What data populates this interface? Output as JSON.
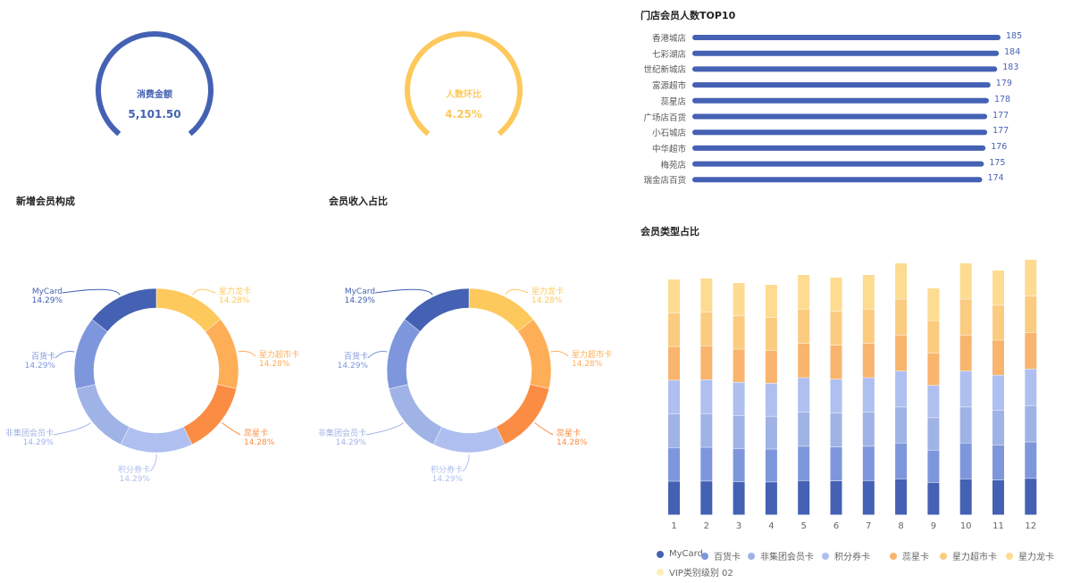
{
  "gauges": [
    {
      "label": "消费金额",
      "value": "5,101.50",
      "color": "#4461b3"
    },
    {
      "label": "人数环比",
      "value": "4.25%",
      "color": "#fdc95c"
    }
  ],
  "chart_data": [
    {
      "type": "pie",
      "title": "新增会员构成",
      "donut": true,
      "slices": [
        {
          "name": "星力龙卡",
          "pct": "14.28%",
          "value": 14.28,
          "color": "#fdc95c"
        },
        {
          "name": "星力超市卡",
          "pct": "14.28%",
          "value": 14.28,
          "color": "#feae57"
        },
        {
          "name": "蕊星卡",
          "pct": "14.28%",
          "value": 14.28,
          "color": "#fb8c44"
        },
        {
          "name": "积分券卡",
          "pct": "14.29%",
          "value": 14.29,
          "color": "#afbff0"
        },
        {
          "name": "非集团会员卡",
          "pct": "14.29%",
          "value": 14.29,
          "color": "#a0b3e6"
        },
        {
          "name": "百货卡",
          "pct": "14.29%",
          "value": 14.29,
          "color": "#7e97dc"
        },
        {
          "name": "MyCard",
          "pct": "14.29%",
          "value": 14.29,
          "color": "#4461b3"
        }
      ]
    },
    {
      "type": "pie",
      "title": "会员收入占比",
      "donut": true,
      "slices": [
        {
          "name": "星力龙卡",
          "pct": "14.28%",
          "value": 14.28,
          "color": "#fdc95c"
        },
        {
          "name": "星力超市卡",
          "pct": "14.28%",
          "value": 14.28,
          "color": "#feae57"
        },
        {
          "name": "蕊星卡",
          "pct": "14.28%",
          "value": 14.28,
          "color": "#fb8c44"
        },
        {
          "name": "积分券卡",
          "pct": "14.29%",
          "value": 14.29,
          "color": "#afbff0"
        },
        {
          "name": "非集团会员卡",
          "pct": "14.29%",
          "value": 14.29,
          "color": "#a0b3e6"
        },
        {
          "name": "百货卡",
          "pct": "14.29%",
          "value": 14.29,
          "color": "#7e97dc"
        },
        {
          "name": "MyCard",
          "pct": "14.29%",
          "value": 14.29,
          "color": "#4461b3"
        }
      ]
    },
    {
      "type": "bar",
      "orientation": "horizontal",
      "title": "门店会员人数TOP10",
      "color": "#4461b3",
      "xlim": [
        0,
        185
      ],
      "categories": [
        "香港城店",
        "七彩湖店",
        "世纪新城店",
        "富源超市",
        "蕊星店",
        "广场店百货",
        "小石城店",
        "中华超市",
        "梅苑店",
        "瑞金店百货"
      ],
      "values": [
        185,
        184,
        183,
        179,
        178,
        177,
        177,
        176,
        175,
        174
      ]
    },
    {
      "type": "bar",
      "stacked": true,
      "title": "会员类型占比",
      "categories": [
        "1",
        "2",
        "3",
        "4",
        "5",
        "6",
        "7",
        "8",
        "9",
        "10",
        "11",
        "12"
      ],
      "totals": [
        264,
        265,
        260,
        258,
        269,
        266,
        269,
        282,
        254,
        282,
        274,
        286
      ],
      "series": [
        {
          "name": "MyCard",
          "color": "#4461b3"
        },
        {
          "name": "百货卡",
          "color": "#7e97dc"
        },
        {
          "name": "非集团会员卡",
          "color": "#a0b3e6"
        },
        {
          "name": "积分券卡",
          "color": "#afbff0"
        },
        {
          "name": "蕊星卡",
          "color": "#f9b46e"
        },
        {
          "name": "星力超市卡",
          "color": "#fbcc7f"
        },
        {
          "name": "星力龙卡",
          "color": "#fddb91"
        },
        {
          "name": "VIP类别级别 02",
          "color": "#fdeeb8"
        }
      ],
      "note_series_values": "each of first 7 series = total/7; VIP类别级别 02 = 0"
    }
  ]
}
